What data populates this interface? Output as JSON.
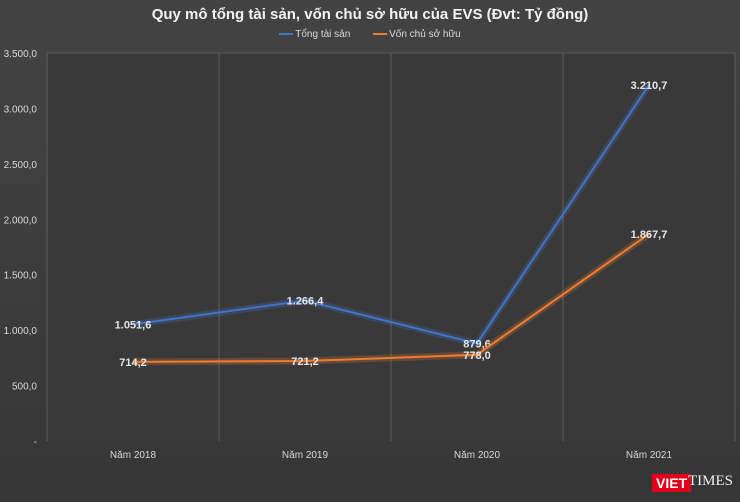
{
  "chart_data": {
    "type": "line",
    "title": "Quy mô tổng tài sản, vốn chủ sở hữu của EVS (Đvt: Tỷ đồng)",
    "categories": [
      "Năm 2018",
      "Năm 2019",
      "Năm 2020",
      "Năm 2021"
    ],
    "series": [
      {
        "name": "Tổng tài sản",
        "color": "#4472c4",
        "values": [
          1051.6,
          1266.4,
          879.6,
          3210.7
        ],
        "labels": [
          "1.051,6",
          "1.266,4",
          "879,6",
          "3.210,7"
        ]
      },
      {
        "name": "Vốn chủ sở hữu",
        "color": "#ed7d31",
        "values": [
          714.2,
          721.2,
          778.0,
          1867.7
        ],
        "labels": [
          "714,2",
          "721,2",
          "778,0",
          "1.867,7"
        ]
      }
    ],
    "yticks": [
      0,
      500,
      1000,
      1500,
      2000,
      2500,
      3000,
      3500
    ],
    "ytick_labels": [
      "-",
      "500,0",
      "1.000,0",
      "1.500,0",
      "2.000,0",
      "2.500,0",
      "3.000,0",
      "3.500,0"
    ],
    "ylim": [
      0,
      3500
    ],
    "legend": "top",
    "grid": true
  },
  "logo": {
    "brand1": "VIET",
    "brand2": "TIMES"
  }
}
